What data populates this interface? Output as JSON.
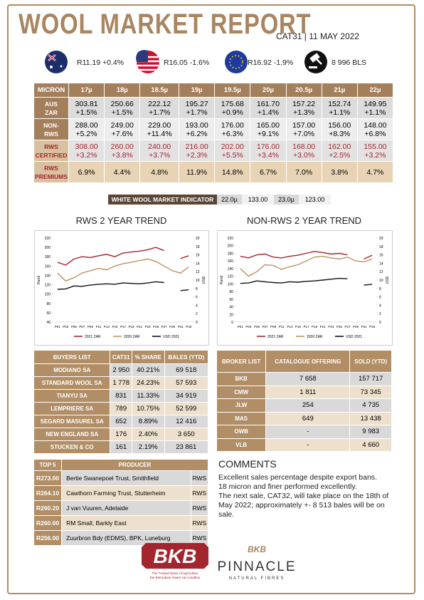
{
  "header": {
    "title": "WOOL MARKET REPORT",
    "subtitle": "CAT31 | 11 MAY 2022"
  },
  "indicators": [
    "R11.19 +0.4%",
    "R16.05 -1.6%",
    "R16.92 -1.9%",
    "8 996 BLS"
  ],
  "micron_table": {
    "header": [
      "MICRON",
      "17µ",
      "18µ",
      "18.5µ",
      "19µ",
      "19.5µ",
      "20µ",
      "20.5µ",
      "21µ",
      "22µ"
    ],
    "rows": [
      {
        "label": [
          "AUS",
          "ZAR"
        ],
        "cells": [
          [
            "303.81",
            "+1.5%"
          ],
          [
            "250.66",
            "+1.5%"
          ],
          [
            "222.12",
            "+1.7%"
          ],
          [
            "195.27",
            "+1.7%"
          ],
          [
            "175.68",
            "+0.9%"
          ],
          [
            "161.70",
            "+1.4%"
          ],
          [
            "157.22",
            "+1.3%"
          ],
          [
            "152.74",
            "+1.1%"
          ],
          [
            "149.95",
            "+1.1%"
          ]
        ]
      },
      {
        "label": [
          "NON-",
          "RWS"
        ],
        "cells": [
          [
            "288.00",
            "+5.2%"
          ],
          [
            "249.00",
            "+7.6%"
          ],
          [
            "229.00",
            "+11.4%"
          ],
          [
            "193.00",
            "+6.2%"
          ],
          [
            "176.00",
            "+6.3%"
          ],
          [
            "165.00",
            "+9.1%"
          ],
          [
            "157.00",
            "+7.0%"
          ],
          [
            "156.00",
            "+8.3%"
          ],
          [
            "148.00",
            "+6.8%"
          ]
        ]
      },
      {
        "label": [
          "RWS",
          "CERTIFIED"
        ],
        "cells": [
          [
            "308.00",
            "+3.2%"
          ],
          [
            "260.00",
            "+3.8%"
          ],
          [
            "240.00",
            "+3.7%"
          ],
          [
            "216.00",
            "+2.3%"
          ],
          [
            "202.00",
            "+5.5%"
          ],
          [
            "176.00",
            "+3.4%"
          ],
          [
            "168.00",
            "+3.0%"
          ],
          [
            "162.00",
            "+2.5%"
          ],
          [
            "155.00",
            "+3.2%"
          ]
        ]
      },
      {
        "label": [
          "RWS",
          "PREMIUMS"
        ],
        "cells": [
          [
            "6.9%"
          ],
          [
            "4.4%"
          ],
          [
            "4.8%"
          ],
          [
            "11.9%"
          ],
          [
            "14.8%"
          ],
          [
            "6.7%"
          ],
          [
            "7.0%"
          ],
          [
            "3.8%"
          ],
          [
            "4.7%"
          ]
        ]
      }
    ]
  },
  "wwmi": {
    "label": "WHITE WOOL MARKET INDICATOR",
    "items": [
      "22.0µ",
      "133.00",
      "23.0µ",
      "123.00"
    ]
  },
  "charts": [
    {
      "type": "line",
      "title": "RWS 2 YEAR TREND",
      "y_label": "Rand",
      "y2_label": "USD",
      "categories": [
        "P01",
        "P03",
        "P05",
        "P07",
        "P09",
        "P11",
        "P13",
        "P15",
        "P17",
        "P19",
        "P21",
        "P23",
        "P25",
        "P27",
        "P29",
        "P31",
        "P33"
      ],
      "series": [
        {
          "name": "2021 ZAR",
          "color": "#a3262e",
          "values": [
            168,
            162,
            175,
            180,
            178,
            182,
            185,
            180,
            188,
            190,
            192,
            195,
            200,
            193,
            null,
            176,
            182
          ]
        },
        {
          "name": "2020 ZAR",
          "color": "#b99262",
          "values": [
            145,
            128,
            135,
            145,
            150,
            155,
            152,
            160,
            165,
            168,
            172,
            175,
            170,
            160,
            150,
            145,
            158
          ]
        },
        {
          "name": "USD 2021",
          "color": "#111111",
          "axis": "y2",
          "values": [
            7.8,
            7.9,
            8.6,
            8.5,
            8.8,
            9,
            9.1,
            9,
            9.3,
            9.2,
            9.1,
            9.3,
            9.6,
            9.4,
            null,
            7.5,
            7.7
          ]
        }
      ],
      "ylim": [
        40,
        220
      ],
      "yticks": [
        40,
        60,
        80,
        100,
        120,
        140,
        160,
        180,
        200,
        220
      ],
      "y2lim": [
        0,
        20
      ],
      "y2ticks": [
        0,
        2,
        4,
        6,
        8,
        10,
        12,
        14,
        16,
        18,
        20
      ]
    },
    {
      "type": "line",
      "title": "NON-RWS 2 YEAR TREND",
      "y_label": "Rand",
      "y2_label": "USD",
      "categories": [
        "P01",
        "P03",
        "P05",
        "P07",
        "P09",
        "P11",
        "P13",
        "P15",
        "P17",
        "P19",
        "P21",
        "P23",
        "P25",
        "P27",
        "P29",
        "P31",
        "P33"
      ],
      "series": [
        {
          "name": "2021 ZAR",
          "color": "#a3262e",
          "values": [
            172,
            168,
            176,
            178,
            170,
            168,
            172,
            175,
            180,
            185,
            182,
            178,
            180,
            176,
            null,
            165,
            175
          ]
        },
        {
          "name": "2020 ZAR",
          "color": "#b99262",
          "values": [
            140,
            120,
            132,
            150,
            148,
            138,
            145,
            150,
            160,
            170,
            172,
            168,
            165,
            170,
            160,
            158,
            165
          ]
        },
        {
          "name": "USD 2021",
          "color": "#111111",
          "axis": "y2",
          "values": [
            9.2,
            9.3,
            9.8,
            9.6,
            9.4,
            9.3,
            9.6,
            9.5,
            9.7,
            9.8,
            10,
            10.2,
            10.4,
            10.3,
            null,
            8.8,
            9
          ]
        }
      ],
      "ylim": [
        0,
        220
      ],
      "yticks": [
        0,
        20,
        40,
        60,
        80,
        100,
        120,
        140,
        160,
        180,
        200,
        220
      ],
      "y2lim": [
        0,
        20
      ],
      "y2ticks": [
        0,
        2,
        4,
        6,
        8,
        10,
        12,
        14,
        16,
        18,
        20
      ]
    }
  ],
  "buyers": {
    "header": [
      "BUYERS LIST",
      "CAT31",
      "% SHARE",
      "BALES (YTD)"
    ],
    "rows": [
      [
        "MODIANO SA",
        "2 950",
        "40.21%",
        "69 518"
      ],
      [
        "STANDARD WOOL SA",
        "1 778",
        "24.23%",
        "57 593"
      ],
      [
        "TIANYU SA",
        "831",
        "11.33%",
        "34 919"
      ],
      [
        "LEMPRIERE SA",
        "789",
        "10.75%",
        "52 599"
      ],
      [
        "SEGARD MASUREL SA",
        "652",
        "8.89%",
        "12 416"
      ],
      [
        "NEW ENGLAND SA",
        "176",
        "2.40%",
        "3 650"
      ],
      [
        "STUCKEN & CO",
        "161",
        "2.19%",
        "23 861"
      ]
    ]
  },
  "brokers": {
    "header": [
      "BROKER LIST",
      "CATALOGUE OFFERING",
      "SOLD (YTD)"
    ],
    "rows": [
      [
        "BKB",
        "7 658",
        "157 717"
      ],
      [
        "CMW",
        "1 811",
        "73 345"
      ],
      [
        "JLW",
        "254",
        "4 735"
      ],
      [
        "MAS",
        "649",
        "13 438"
      ],
      [
        "OWB",
        "-",
        "9 983"
      ],
      [
        "VLB",
        "-",
        "4 660"
      ]
    ]
  },
  "top5": {
    "header": [
      "TOP 5",
      "PRODUCER"
    ],
    "rows": [
      [
        "R273.00",
        "Bertie Swanepoel Trust, Smithfield",
        "RWS"
      ],
      [
        "R264.10",
        "Cawthorn Farming Trust, Stutterheim",
        "RWS"
      ],
      [
        "R260.20",
        "J van Vuuren, Adelaide",
        "RWS"
      ],
      [
        "R260.00",
        "RM Small, Barkly East",
        "RWS"
      ],
      [
        "R256.00",
        "Zuurbron Bdy (EDMS), BPK, Luneburg",
        "RWS"
      ]
    ]
  },
  "comments": {
    "title": "COMMENTS",
    "paragraphs": [
      "Excellent sales percentage despite export bans.",
      "18 micron and finer performed excellently.",
      "The next sale, CAT32, will take place on the 18th of May 2022; approximately +- 8 513 bales will be on sale."
    ]
  },
  "logos": {
    "bkb": "BKB",
    "bkb_tagline": [
      "The Trusted Name of Agriculture",
      "Die Betroubare Naam van Landbou"
    ],
    "pinnacle_badge": "BKB",
    "pinnacle": "PINNACLE",
    "pinnacle_sub": "NATURAL FIBRES"
  }
}
